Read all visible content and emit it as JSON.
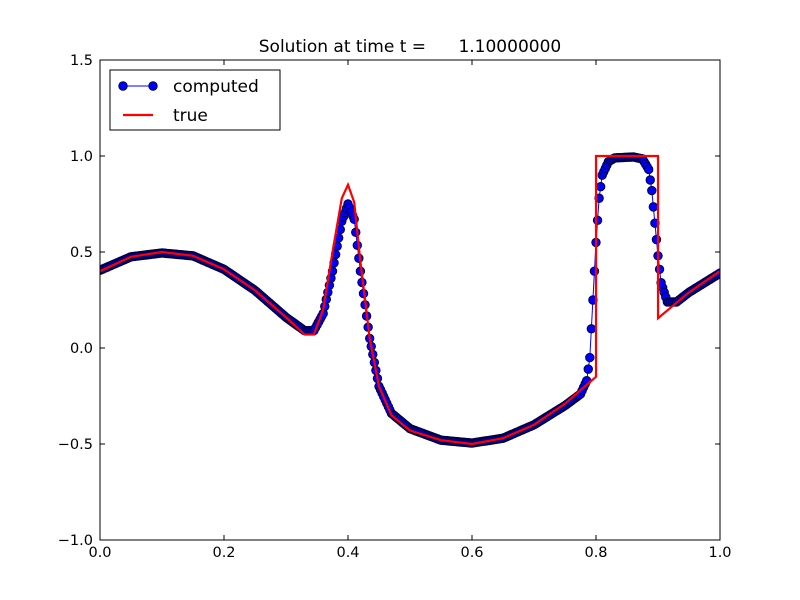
{
  "chart_data": {
    "type": "line",
    "title": "Solution at time t =      1.10000000",
    "xlabel": "",
    "ylabel": "",
    "xlim": [
      0.0,
      1.0
    ],
    "ylim": [
      -1.0,
      1.5
    ],
    "x_ticks": [
      "0.0",
      "0.2",
      "0.4",
      "0.6",
      "0.8",
      "1.0"
    ],
    "y_ticks": [
      "−1.0",
      "−0.5",
      "0.0",
      "0.5",
      "1.0",
      "1.5"
    ],
    "grid": false,
    "legend": {
      "placement": "upper-left",
      "entries": [
        "computed",
        "true"
      ]
    },
    "series": [
      {
        "name": "computed",
        "color": "#0000ff",
        "edge_color": "#000044",
        "style": "line-with-circle-markers",
        "points": [
          [
            0.0,
            0.405
          ],
          [
            0.05,
            0.475
          ],
          [
            0.1,
            0.495
          ],
          [
            0.15,
            0.48
          ],
          [
            0.2,
            0.41
          ],
          [
            0.25,
            0.3
          ],
          [
            0.3,
            0.16
          ],
          [
            0.33,
            0.09
          ],
          [
            0.345,
            0.09
          ],
          [
            0.36,
            0.18
          ],
          [
            0.375,
            0.4
          ],
          [
            0.39,
            0.66
          ],
          [
            0.4,
            0.75
          ],
          [
            0.41,
            0.67
          ],
          [
            0.42,
            0.4
          ],
          [
            0.435,
            0.05
          ],
          [
            0.45,
            -0.2
          ],
          [
            0.47,
            -0.34
          ],
          [
            0.5,
            -0.42
          ],
          [
            0.55,
            -0.48
          ],
          [
            0.6,
            -0.495
          ],
          [
            0.65,
            -0.47
          ],
          [
            0.7,
            -0.4
          ],
          [
            0.75,
            -0.3
          ],
          [
            0.775,
            -0.24
          ],
          [
            0.785,
            -0.17
          ],
          [
            0.79,
            -0.05
          ],
          [
            0.795,
            0.25
          ],
          [
            0.8,
            0.55
          ],
          [
            0.805,
            0.78
          ],
          [
            0.81,
            0.9
          ],
          [
            0.82,
            0.97
          ],
          [
            0.83,
            0.99
          ],
          [
            0.86,
            0.995
          ],
          [
            0.875,
            0.985
          ],
          [
            0.885,
            0.93
          ],
          [
            0.89,
            0.82
          ],
          [
            0.895,
            0.65
          ],
          [
            0.9,
            0.48
          ],
          [
            0.905,
            0.34
          ],
          [
            0.915,
            0.24
          ],
          [
            0.93,
            0.24
          ],
          [
            0.95,
            0.29
          ],
          [
            0.975,
            0.34
          ],
          [
            1.0,
            0.39
          ]
        ]
      },
      {
        "name": "true",
        "color": "#ff0000",
        "style": "line",
        "points": [
          [
            0.0,
            0.4
          ],
          [
            0.05,
            0.475
          ],
          [
            0.1,
            0.5
          ],
          [
            0.15,
            0.48
          ],
          [
            0.2,
            0.41
          ],
          [
            0.25,
            0.3
          ],
          [
            0.3,
            0.16
          ],
          [
            0.33,
            0.07
          ],
          [
            0.345,
            0.07
          ],
          [
            0.36,
            0.2
          ],
          [
            0.375,
            0.5
          ],
          [
            0.39,
            0.78
          ],
          [
            0.4,
            0.85
          ],
          [
            0.41,
            0.76
          ],
          [
            0.42,
            0.45
          ],
          [
            0.435,
            0.05
          ],
          [
            0.45,
            -0.2
          ],
          [
            0.47,
            -0.35
          ],
          [
            0.5,
            -0.43
          ],
          [
            0.55,
            -0.48
          ],
          [
            0.6,
            -0.5
          ],
          [
            0.65,
            -0.47
          ],
          [
            0.7,
            -0.4
          ],
          [
            0.75,
            -0.29
          ],
          [
            0.8,
            -0.15
          ],
          [
            0.8,
            1.0
          ],
          [
            0.9,
            1.0
          ],
          [
            0.9,
            0.155
          ],
          [
            0.95,
            0.29
          ],
          [
            1.0,
            0.4
          ]
        ]
      }
    ]
  }
}
